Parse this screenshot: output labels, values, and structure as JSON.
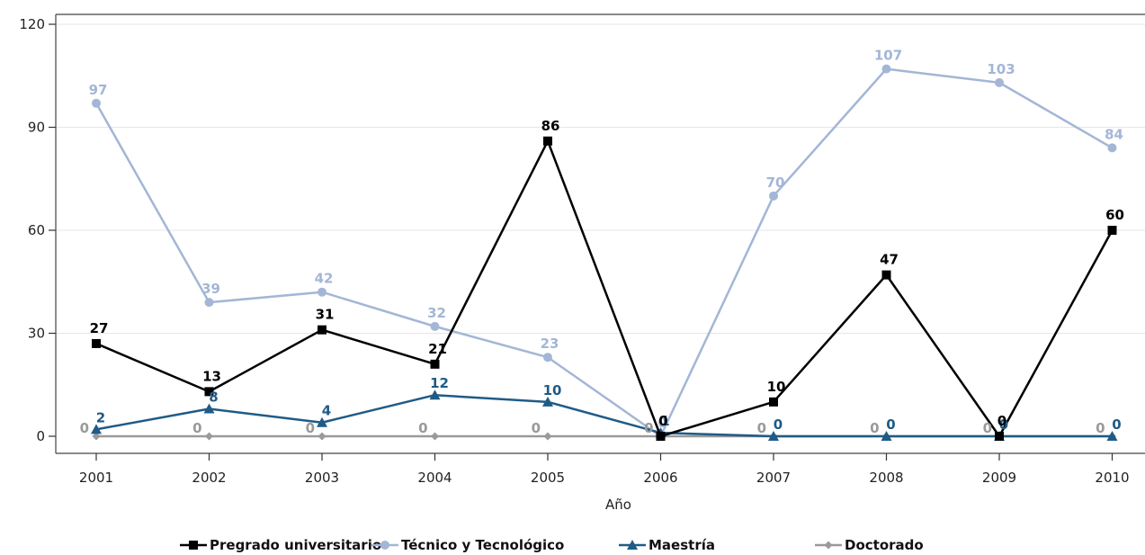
{
  "chart_data": {
    "type": "line",
    "xlabel": "Año",
    "ylabel": "",
    "categories": [
      "2001",
      "2002",
      "2003",
      "2004",
      "2005",
      "2006",
      "2007",
      "2008",
      "2009",
      "2010"
    ],
    "ylim": [
      0,
      120
    ],
    "yticks": [
      0,
      30,
      60,
      90,
      120
    ],
    "grid": "horizontal",
    "legend_position": "bottom",
    "series": [
      {
        "name": "Pregrado universitario",
        "color": "#000000",
        "marker": "square",
        "values": [
          27,
          13,
          31,
          21,
          86,
          0,
          10,
          47,
          0,
          60
        ]
      },
      {
        "name": "Técnico y Tecnológico",
        "color": "#a3b6d6",
        "marker": "circle",
        "values": [
          97,
          39,
          42,
          32,
          23,
          0,
          70,
          107,
          103,
          84
        ]
      },
      {
        "name": "Maestría",
        "color": "#1f5b87",
        "marker": "triangle",
        "values": [
          2,
          8,
          4,
          12,
          10,
          1,
          0,
          0,
          0,
          0
        ]
      },
      {
        "name": "Doctorado",
        "color": "#9a9a9a",
        "marker": "diamond",
        "values": [
          0,
          0,
          0,
          0,
          0,
          0,
          0,
          0,
          0,
          0
        ]
      }
    ],
    "data_label_colors": {
      "Pregrado universitario": "#000000",
      "Técnico y Tecnológico": "#a3b6d6",
      "Maestría": "#1f5b87",
      "Doctorado": "#9a9a9a"
    }
  }
}
